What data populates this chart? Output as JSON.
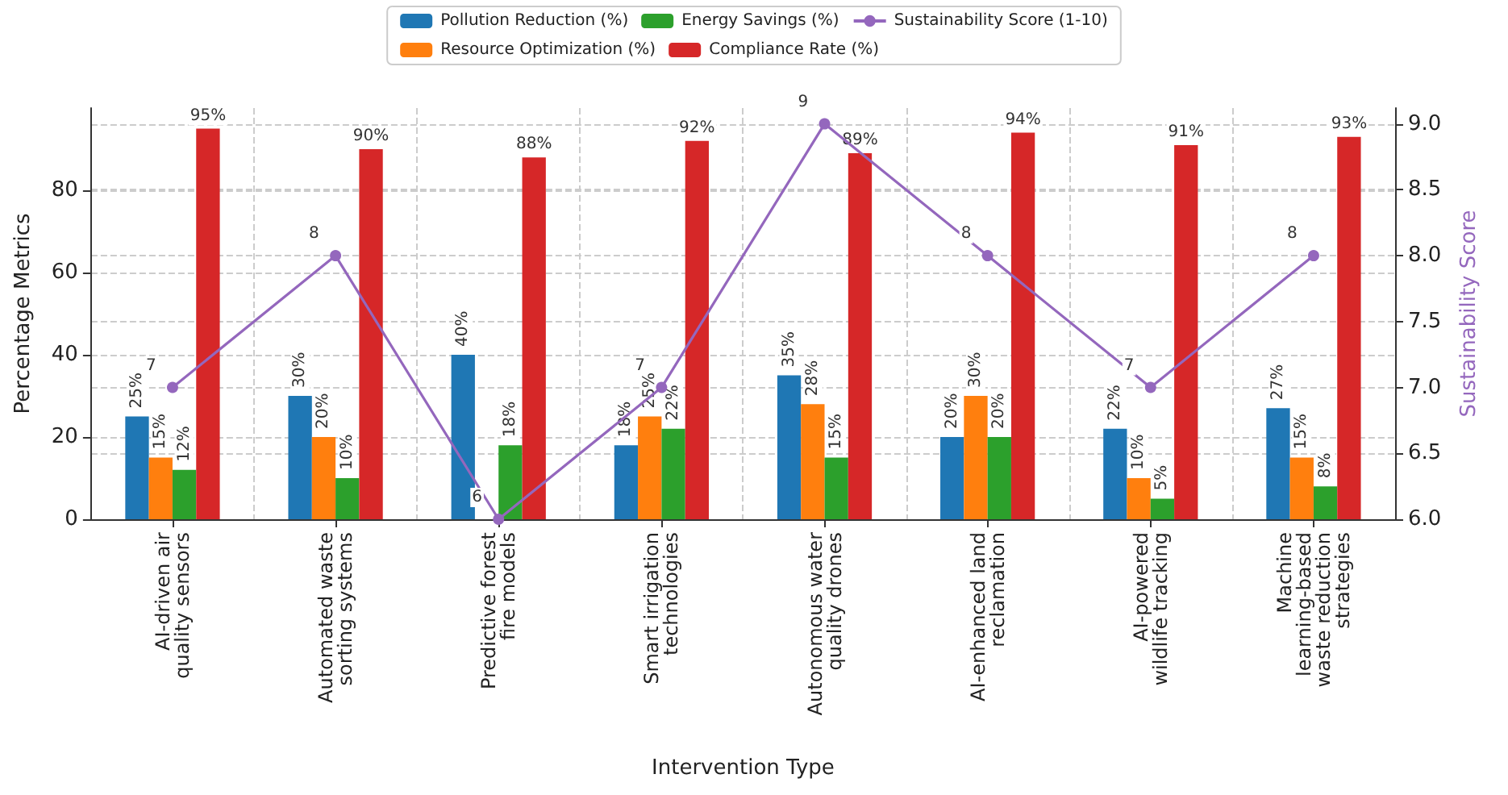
{
  "chart_data": {
    "type": "bar",
    "xlabel": "Intervention Type",
    "ylabel": "Percentage Metrics",
    "y2label": "Sustainability Score",
    "categories": [
      "AI-driven air quality sensors",
      "Automated waste sorting systems",
      "Predictive forest fire models",
      "Smart irrigation technologies",
      "Autonomous water quality drones",
      "AI-enhanced land reclamation",
      "AI-powered wildlife tracking",
      "Machine learning-based waste reduction strategies"
    ],
    "series": [
      {
        "name": "Pollution Reduction (%)",
        "color": "#1f77b4",
        "values": [
          25,
          30,
          40,
          18,
          35,
          20,
          22,
          27
        ],
        "value_labels": [
          "25%",
          "30%",
          "40%",
          "18%",
          "35%",
          "20%",
          "22%",
          "27%"
        ]
      },
      {
        "name": "Resource Optimization (%)",
        "color": "#ff7f0e",
        "values": [
          15,
          20,
          null,
          25,
          28,
          30,
          10,
          15
        ],
        "value_labels": [
          "15%",
          "20%",
          null,
          "25%",
          "28%",
          "30%",
          "10%",
          "15%"
        ]
      },
      {
        "name": "Energy Savings (%)",
        "color": "#2ca02c",
        "values": [
          12,
          10,
          18,
          22,
          15,
          20,
          5,
          8
        ],
        "value_labels": [
          "12%",
          "10%",
          "18%",
          "22%",
          "15%",
          "20%",
          "5%",
          "8%"
        ]
      },
      {
        "name": "Compliance Rate (%)",
        "color": "#d62728",
        "values": [
          95,
          90,
          88,
          92,
          89,
          94,
          91,
          93
        ],
        "value_labels": [
          "95%",
          "90%",
          "88%",
          "92%",
          "89%",
          "94%",
          "91%",
          "93%"
        ]
      },
      {
        "name": "Sustainability Score (1-10)",
        "color": "#9467bd",
        "type": "line",
        "axis": "y2",
        "marker": "circle",
        "values": [
          7,
          8,
          6,
          7,
          9,
          8,
          7,
          8
        ],
        "value_labels": [
          "7",
          "8",
          "6",
          "7",
          "9",
          "8",
          "7",
          "8"
        ]
      }
    ],
    "ylim": [
      0,
      100
    ],
    "yticks": [
      0,
      20,
      40,
      60,
      80
    ],
    "y2lim": [
      6,
      9.12
    ],
    "y2ticks": [
      {
        "value": 6,
        "label": "6.0"
      },
      6.5,
      {
        "value": 7,
        "label": "7.0"
      },
      7.5,
      {
        "value": 8,
        "label": "8.0"
      },
      8.5,
      {
        "value": 9,
        "label": "9.0"
      }
    ],
    "grid": true,
    "legend": "top"
  }
}
